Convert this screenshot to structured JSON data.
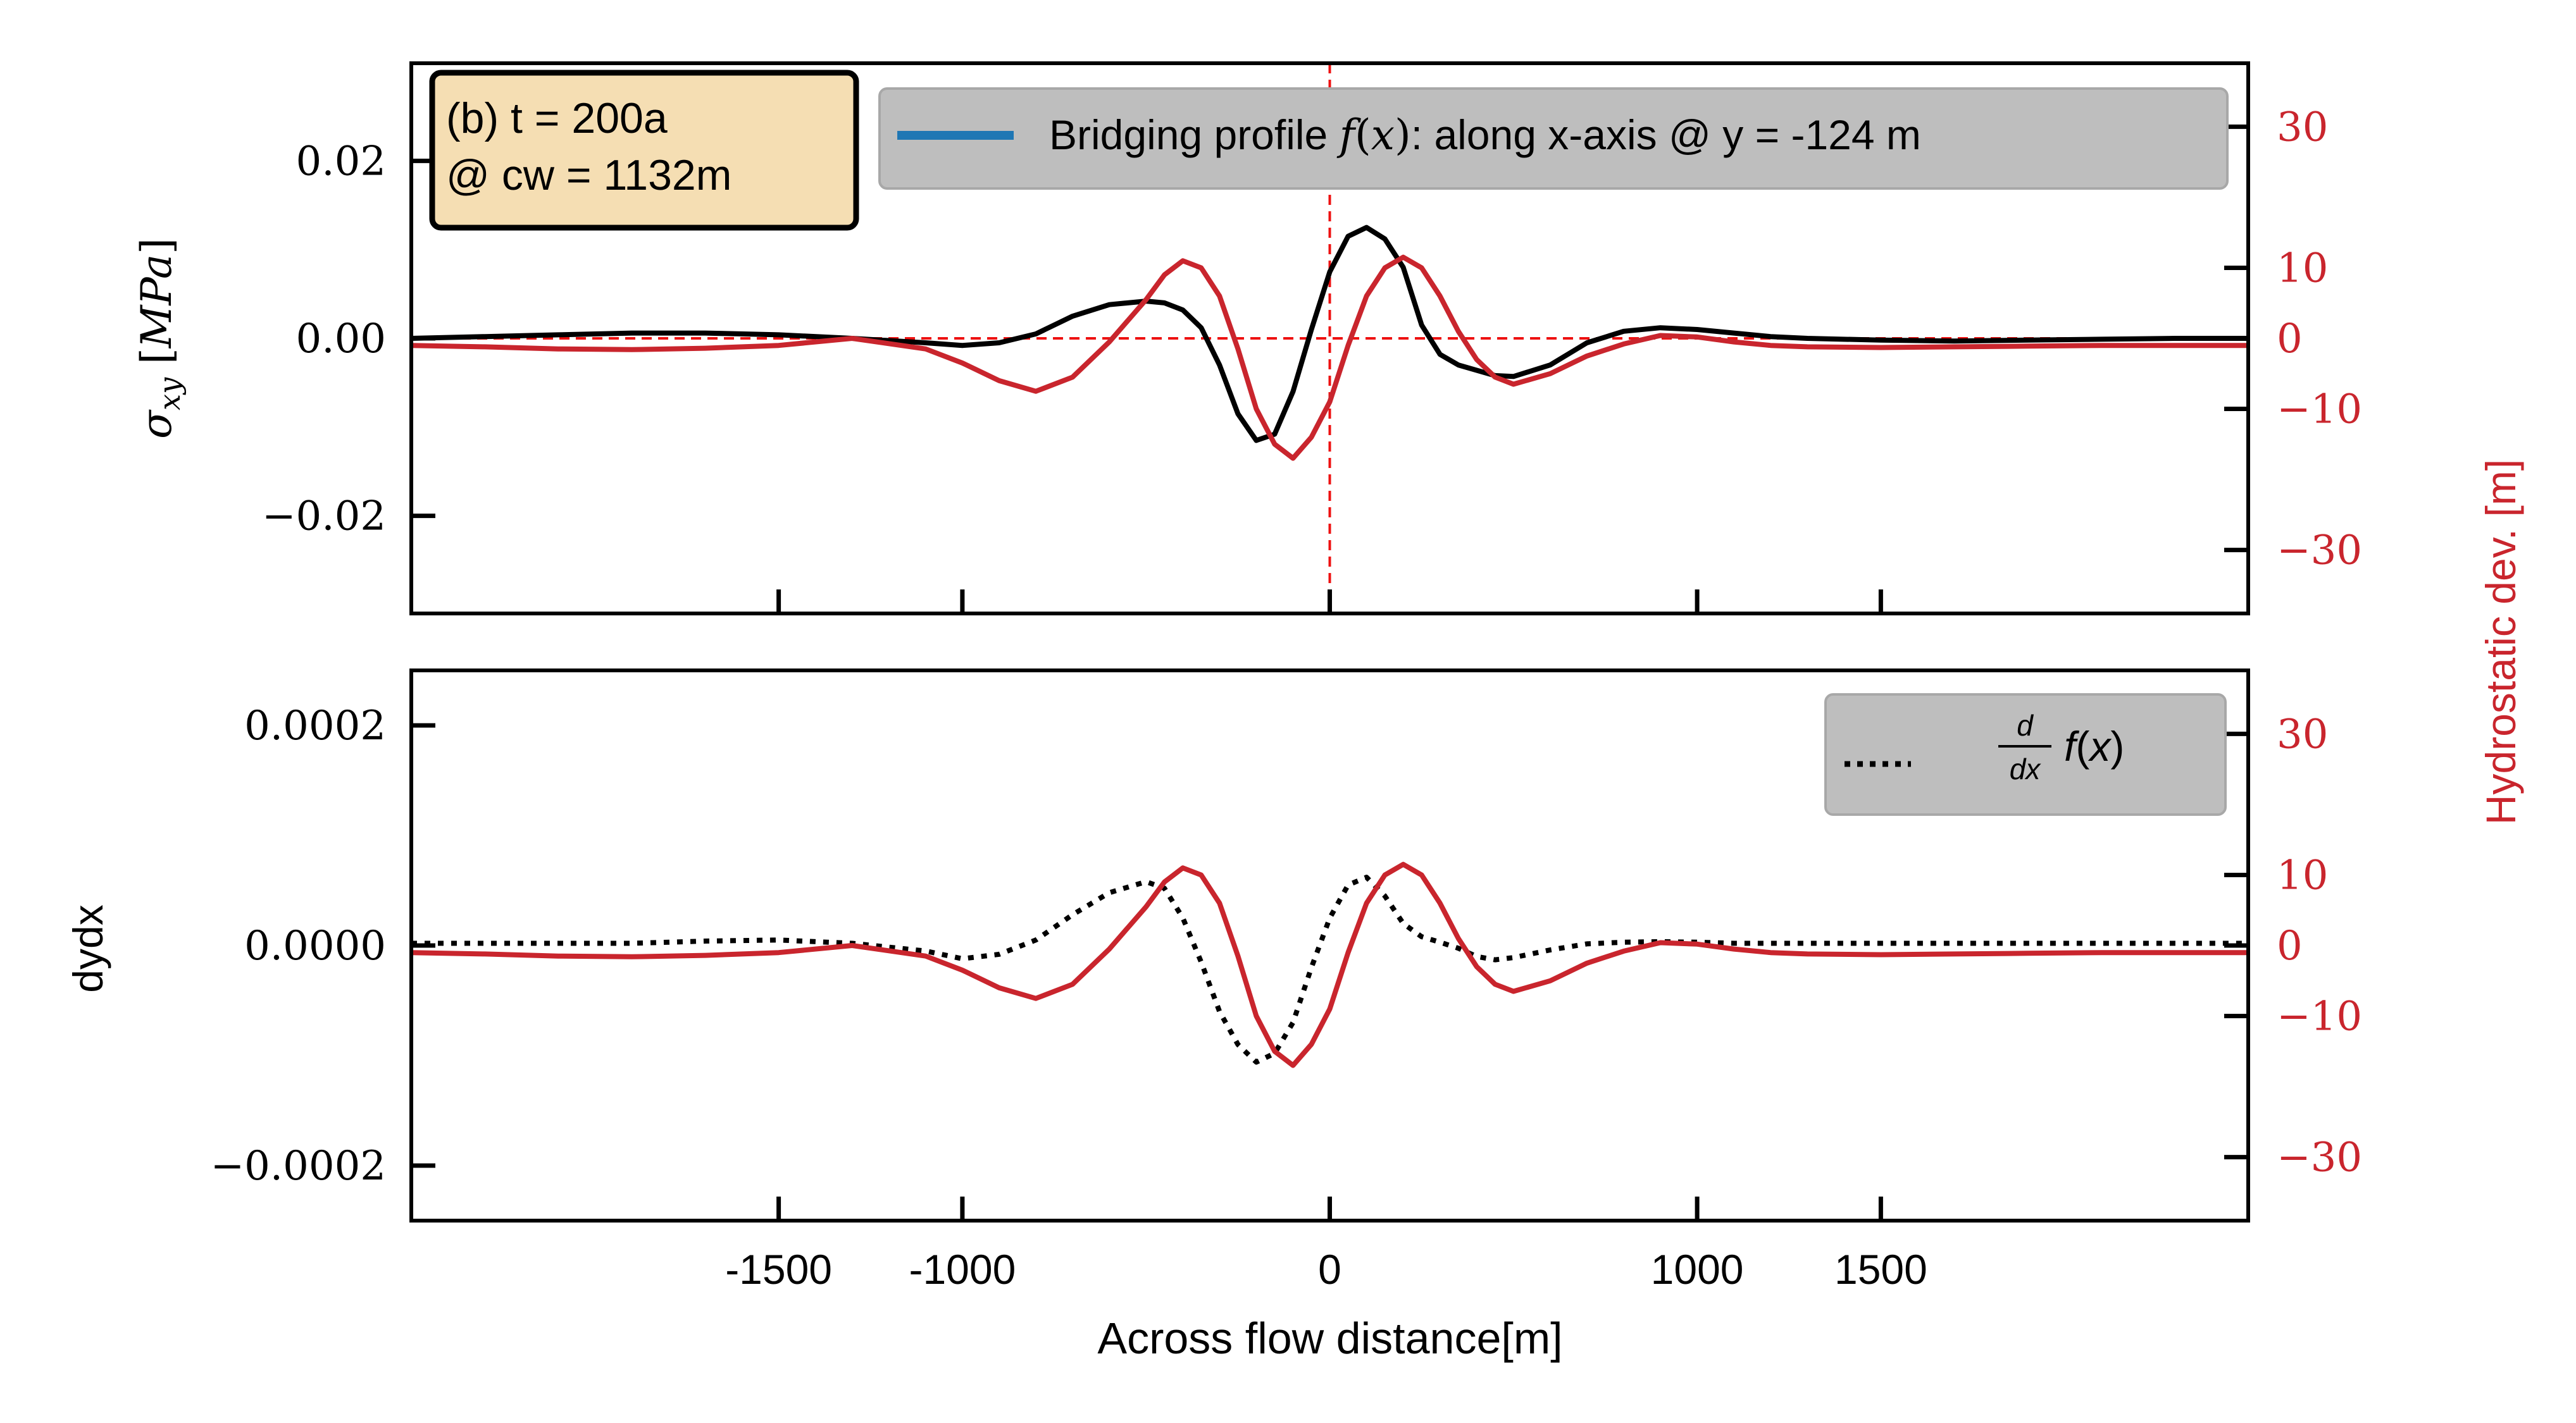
{
  "colors": {
    "black": "#000000",
    "red": "#c9252d",
    "blue": "#1f77b4",
    "annotation_bg": "#f5deb3",
    "legend_bg": "#bebebe",
    "refline": "#ee1111"
  },
  "chart_data": [
    {
      "type": "line",
      "panel": "top",
      "annotation": [
        "(b) t = 200a",
        "@ cw = 1132m"
      ],
      "legend": {
        "placement": "top-right",
        "entries": [
          {
            "text_before": "Bridging profile ",
            "math": "f(x)",
            "text_after": ": along x-axis @ y = -124 m",
            "color": "#1f77b4",
            "style": "solid"
          }
        ]
      },
      "xlim": [
        -2500,
        2500
      ],
      "ylim": [
        -0.031,
        0.031
      ],
      "ylabel_math": "σ_xy [MPa]",
      "yticks": [
        -0.02,
        0.0,
        0.02
      ],
      "ytick_labels": [
        "−0.02",
        "0.00",
        "0.02"
      ],
      "xticks": [
        -1500,
        -1000,
        0,
        1000,
        1500
      ],
      "y2lim": [
        -39,
        39
      ],
      "y2label": "Hydrostatic dev. [m]",
      "y2ticks": [
        -30,
        -10,
        0,
        10,
        30
      ],
      "y2tick_labels": [
        "−30",
        "−10",
        "0",
        "10",
        "30"
      ],
      "reference_lines": {
        "vertical_x": 0,
        "horizontal_y": 0
      },
      "series": [
        {
          "axis": "left",
          "color": "#000000",
          "style": "solid",
          "x": [
            -2500,
            -2300,
            -2100,
            -1900,
            -1700,
            -1500,
            -1300,
            -1100,
            -1000,
            -900,
            -800,
            -700,
            -600,
            -500,
            -450,
            -400,
            -350,
            -300,
            -250,
            -200,
            -150,
            -100,
            -50,
            0,
            50,
            100,
            150,
            200,
            250,
            300,
            350,
            400,
            450,
            500,
            600,
            700,
            800,
            900,
            1000,
            1100,
            1200,
            1300,
            1500,
            1700,
            1900,
            2100,
            2300,
            2500
          ],
          "y": [
            0,
            0.0002,
            0.0004,
            0.0006,
            0.0006,
            0.0004,
            0.0,
            -0.0005,
            -0.0008,
            -0.0005,
            0.0005,
            0.0025,
            0.0038,
            0.0042,
            0.004,
            0.0032,
            0.0012,
            -0.003,
            -0.0085,
            -0.0115,
            -0.0108,
            -0.006,
            0.001,
            0.0075,
            0.0115,
            0.0125,
            0.0112,
            0.008,
            0.0015,
            -0.0018,
            -0.003,
            -0.0036,
            -0.0042,
            -0.0043,
            -0.003,
            -0.0005,
            0.0008,
            0.0012,
            0.001,
            0.0006,
            0.0002,
            0,
            -0.0002,
            -0.0003,
            -0.0002,
            -0.0001,
            0,
            0
          ]
        },
        {
          "axis": "right",
          "color": "#c9252d",
          "style": "solid",
          "x": [
            -2500,
            -2300,
            -2100,
            -1900,
            -1700,
            -1500,
            -1300,
            -1100,
            -1000,
            -900,
            -800,
            -700,
            -600,
            -500,
            -450,
            -400,
            -350,
            -300,
            -250,
            -200,
            -150,
            -100,
            -50,
            0,
            50,
            100,
            150,
            200,
            250,
            300,
            350,
            400,
            450,
            500,
            600,
            700,
            800,
            900,
            1000,
            1100,
            1200,
            1300,
            1500,
            1700,
            1900,
            2100,
            2300,
            2500
          ],
          "y": [
            -1,
            -1.2,
            -1.5,
            -1.6,
            -1.4,
            -1,
            0,
            -1.5,
            -3.5,
            -6,
            -7.5,
            -5.5,
            -0.5,
            5.5,
            9,
            11,
            10,
            6,
            -1.5,
            -10,
            -15,
            -17,
            -14,
            -9,
            -1,
            6,
            10,
            11.5,
            10,
            6,
            1,
            -3,
            -5.5,
            -6.5,
            -5,
            -2.5,
            -0.8,
            0.4,
            0.2,
            -0.5,
            -1,
            -1.2,
            -1.3,
            -1.2,
            -1.1,
            -1,
            -1,
            -1
          ]
        }
      ]
    },
    {
      "type": "line",
      "panel": "bottom",
      "legend": {
        "placement": "top-right",
        "entries": [
          {
            "math": "d/dx f(x)",
            "color": "#000000",
            "style": "dotted"
          }
        ]
      },
      "xlim": [
        -2500,
        2500
      ],
      "ylim": [
        -0.00025,
        0.00025
      ],
      "ylabel": "dydx",
      "yticks": [
        -0.0002,
        0.0,
        0.0002
      ],
      "ytick_labels": [
        "−0.0002",
        "0.0000",
        "0.0002"
      ],
      "xticks": [
        -1500,
        -1000,
        0,
        1000,
        1500
      ],
      "xtick_labels": [
        "-1500",
        "-1000",
        "0",
        "1000",
        "1500"
      ],
      "xlabel": "Across flow distance[m]",
      "y2lim": [
        -39,
        39
      ],
      "y2ticks": [
        -30,
        -10,
        0,
        10,
        30
      ],
      "y2tick_labels": [
        "−30",
        "−10",
        "0",
        "10",
        "30"
      ],
      "series": [
        {
          "axis": "left",
          "color": "#000000",
          "style": "dotted",
          "x": [
            -2500,
            -2300,
            -2100,
            -1900,
            -1700,
            -1500,
            -1300,
            -1100,
            -1000,
            -900,
            -800,
            -700,
            -600,
            -500,
            -450,
            -400,
            -350,
            -300,
            -250,
            -200,
            -150,
            -100,
            -50,
            0,
            50,
            100,
            150,
            200,
            250,
            300,
            350,
            400,
            450,
            500,
            600,
            700,
            800,
            900,
            1000,
            1100,
            1200,
            1300,
            1500,
            1700,
            1900,
            2100,
            2300,
            2500
          ],
          "y": [
            2e-06,
            2e-06,
            2e-06,
            2e-06,
            4e-06,
            5e-06,
            2e-06,
            -5e-06,
            -1.2e-05,
            -8e-06,
            5e-06,
            2.8e-05,
            4.8e-05,
            5.8e-05,
            5.2e-05,
            2.5e-05,
            -1.5e-05,
            -6e-05,
            -9e-05,
            -0.000106,
            -9.8e-05,
            -7e-05,
            -2e-05,
            2.5e-05,
            5.5e-05,
            6.2e-05,
            4.5e-05,
            2e-05,
            8e-06,
            3e-06,
            -2.5e-06,
            -1e-05,
            -1.3e-05,
            -1.1e-05,
            -4e-06,
            1.5e-06,
            3e-06,
            3.5e-06,
            3e-06,
            2e-06,
            2e-06,
            2e-06,
            2e-06,
            2e-06,
            2e-06,
            2e-06,
            2e-06,
            2e-06
          ]
        },
        {
          "axis": "right",
          "color": "#c9252d",
          "style": "solid",
          "x": [
            -2500,
            -2300,
            -2100,
            -1900,
            -1700,
            -1500,
            -1300,
            -1100,
            -1000,
            -900,
            -800,
            -700,
            -600,
            -500,
            -450,
            -400,
            -350,
            -300,
            -250,
            -200,
            -150,
            -100,
            -50,
            0,
            50,
            100,
            150,
            200,
            250,
            300,
            350,
            400,
            450,
            500,
            600,
            700,
            800,
            900,
            1000,
            1100,
            1200,
            1300,
            1500,
            1700,
            1900,
            2100,
            2300,
            2500
          ],
          "y": [
            -1,
            -1.2,
            -1.5,
            -1.6,
            -1.4,
            -1,
            0,
            -1.5,
            -3.5,
            -6,
            -7.5,
            -5.5,
            -0.5,
            5.5,
            9,
            11,
            10,
            6,
            -1.5,
            -10,
            -15,
            -17,
            -14,
            -9,
            -1,
            6,
            10,
            11.5,
            10,
            6,
            1,
            -3,
            -5.5,
            -6.5,
            -5,
            -2.5,
            -0.8,
            0.4,
            0.2,
            -0.5,
            -1,
            -1.2,
            -1.3,
            -1.2,
            -1.1,
            -1,
            -1,
            -1
          ]
        }
      ]
    }
  ]
}
